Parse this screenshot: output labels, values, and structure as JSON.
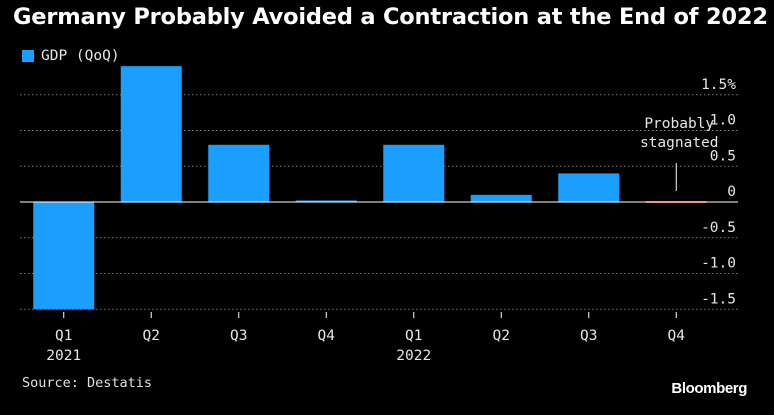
{
  "title": "Germany Probably Avoided a Contraction at the End of 2022",
  "legend": {
    "label": "GDP (QoQ)"
  },
  "source": "Source: Destatis",
  "brand": "Bloomberg",
  "colors": {
    "bar": "#1a9fff",
    "highlight": "#d0312d",
    "grid": "#7a7a7a",
    "background": "#000000"
  },
  "chart_data": {
    "type": "bar",
    "categories": [
      "Q1",
      "Q2",
      "Q3",
      "Q4",
      "Q1",
      "Q2",
      "Q3",
      "Q4"
    ],
    "year_labels": [
      "2021",
      "",
      "",
      "",
      "2022",
      "",
      "",
      ""
    ],
    "series": [
      {
        "name": "GDP (QoQ)",
        "values": [
          -1.5,
          1.9,
          0.8,
          0.0,
          0.8,
          0.1,
          0.4,
          0.0
        ]
      }
    ],
    "highlight_index": 7,
    "yticks": [
      1.5,
      1.0,
      0.5,
      0,
      -0.5,
      -1.0,
      -1.5
    ],
    "ytick_labels": [
      "1.5%",
      "1.0",
      "0.5",
      "0",
      "-0.5",
      "-1.0",
      "-1.5"
    ],
    "ylim": [
      -1.5,
      1.9
    ],
    "axis_position": "right",
    "annotation": {
      "lines": [
        "Probably",
        "stagnated"
      ],
      "category_index": 7
    },
    "grid": true
  }
}
